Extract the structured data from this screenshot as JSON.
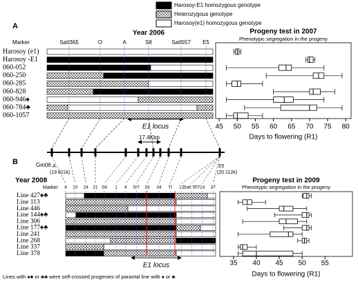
{
  "legend": {
    "items": [
      "Harosoy-E1 homozygous genotype",
      "Heterozygous genotype",
      "Harosoy(e1) homozygous genotype"
    ]
  },
  "panel_a": {
    "label": "A",
    "year": "Year 2006",
    "marker_header": "Marker",
    "markers": [
      "Satt365",
      "O",
      "A",
      "S8",
      "Satt557",
      "E5"
    ],
    "rows": [
      "Harosoy (e1)",
      "Harosoy -E1",
      "060-052",
      "060-250",
      "060-285",
      "060-828",
      "060-946♠",
      "060-784♣",
      "060-1057"
    ],
    "locus": "E1 locus"
  },
  "chromosome": {
    "name": "Gm06",
    "distance": "17.4Kbp",
    "left_marker": "A",
    "left_position": "(19 821k)",
    "right_marker": "E5",
    "right_position": "(20 112k)"
  },
  "panel_b": {
    "label": "B",
    "year": "Year 2008",
    "marker_header": "Marker",
    "markers": [
      "8",
      "10",
      "24",
      "21",
      "S8",
      "1",
      "4",
      "5/7",
      "33",
      "34",
      "TI",
      "12",
      "Satt 557",
      "14",
      "37"
    ],
    "rows": [
      "Line 427♠♣",
      "Line 113",
      "Line 446",
      "Line 144♠♣",
      "Line 306",
      "Line 177♠♣",
      "Line 241",
      "Line 268",
      "Line 337",
      "Line 378"
    ],
    "locus": "E1 locus"
  },
  "footnote": "Lines with ♠♣ or ♣♣ were  self-crossed progenies  of parantal line with ♠ or ♣.",
  "chart_data": [
    {
      "type": "box",
      "title": "Progeny test in 2007",
      "subtitle": "Phenotypic segregation in the progeny",
      "x_label": "Days to flowering (R1)",
      "xlim": [
        44,
        81.5
      ],
      "xticks": [
        45,
        50,
        55,
        60,
        65,
        70,
        75,
        80
      ],
      "color": "#000000",
      "values": [
        [
          49,
          49.5,
          50,
          50.5,
          51
        ],
        [
          69,
          69.5,
          70,
          71,
          71.5
        ],
        [
          47,
          61.5,
          63.5,
          65,
          74
        ],
        [
          58,
          71,
          72.5,
          74,
          79
        ],
        [
          47,
          48.5,
          50,
          51,
          57
        ],
        [
          60,
          70,
          71,
          73,
          77
        ],
        [
          47,
          60,
          63,
          65.5,
          74
        ],
        [
          52,
          62,
          70,
          72,
          79
        ],
        [
          47,
          49,
          50,
          53,
          57
        ]
      ]
    },
    {
      "type": "box",
      "title": "Progeny test in 2009",
      "subtitle": "Phenotypic segregation in the progeny",
      "x_label": "Days to flowering (R1)",
      "xlim": [
        32,
        61
      ],
      "xticks": [
        35,
        40,
        45,
        50,
        55
      ],
      "color": "#000000",
      "values": [
        [
          50,
          50.2,
          51,
          51.5,
          52
        ],
        [
          36,
          37,
          38,
          39,
          42
        ],
        [
          38,
          45,
          46,
          48,
          51
        ],
        [
          44,
          50,
          51,
          51.5,
          52
        ],
        [
          37,
          45,
          46.5,
          49,
          51
        ],
        [
          46,
          50,
          51,
          51.5,
          52
        ],
        [
          36,
          43,
          47,
          48,
          50
        ],
        [
          49,
          50,
          50.5,
          51,
          51.5
        ],
        [
          36,
          36.5,
          37,
          38,
          40
        ],
        [
          36,
          37,
          40,
          48,
          50
        ]
      ]
    }
  ]
}
